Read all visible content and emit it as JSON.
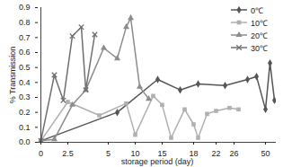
{
  "chart_data": {
    "type": "line",
    "x_label": "storage period (day)",
    "y_label": "% Transmission",
    "categories": [
      "0",
      null,
      null,
      null,
      null,
      null,
      "2.5",
      null,
      null,
      null,
      null,
      null,
      null,
      null,
      null,
      "5",
      null,
      null,
      null,
      null,
      null,
      "10",
      null,
      null,
      null,
      null,
      null,
      "15",
      null,
      null,
      null,
      null,
      null,
      null,
      "18",
      null,
      null,
      null,
      null,
      "22",
      null,
      null,
      null,
      "26",
      null,
      null,
      null,
      null,
      null,
      null,
      "50",
      null,
      null
    ],
    "ylim": [
      0,
      0.9
    ],
    "yticks": [
      {
        "value": 0,
        "label": "0.0"
      },
      0.1,
      0.2,
      0.3,
      0.4,
      0.5,
      0.6,
      0.7,
      0.8,
      0.9
    ],
    "grid": false,
    "legend": "top-right",
    "series": [
      {
        "name": "0℃",
        "color": "#555555",
        "marker": "diamond",
        "values": [
          0.01,
          null,
          null,
          null,
          null,
          null,
          null,
          null,
          null,
          null,
          null,
          null,
          null,
          null,
          null,
          null,
          null,
          0.2,
          null,
          null,
          null,
          null,
          null,
          null,
          null,
          null,
          0.42,
          null,
          null,
          null,
          null,
          0.35,
          null,
          null,
          null,
          0.39,
          null,
          null,
          null,
          null,
          null,
          0.38,
          null,
          null,
          null,
          null,
          0.42,
          null,
          0.44,
          null,
          0.22,
          0.53,
          0.28
        ]
      },
      {
        "name": "10℃",
        "color": "#b0b0b0",
        "marker": "square",
        "values": [
          0.01,
          null,
          null,
          null,
          null,
          null,
          0.27,
          null,
          null,
          null,
          null,
          null,
          null,
          0.18,
          null,
          null,
          null,
          null,
          null,
          0.26,
          null,
          0.05,
          null,
          null,
          null,
          0.31,
          null,
          0.25,
          null,
          0.03,
          null,
          null,
          0.22,
          null,
          0.12,
          0.03,
          null,
          0.19,
          null,
          0.21,
          null,
          null,
          0.23,
          null,
          0.22,
          null,
          null,
          null,
          null,
          null,
          null,
          null,
          null
        ]
      },
      {
        "name": "20℃",
        "color": "#8c8c8c",
        "marker": "triangle",
        "values": [
          0.01,
          null,
          null,
          0.02,
          null,
          null,
          null,
          0.25,
          null,
          null,
          0.35,
          null,
          null,
          null,
          0.63,
          null,
          null,
          0.56,
          null,
          0.77,
          0.83,
          null,
          0.37,
          null,
          0.29,
          null,
          null,
          null,
          null,
          null,
          null,
          null,
          null,
          null,
          null,
          null,
          null,
          null,
          null,
          null,
          null,
          null,
          null,
          null,
          null,
          null,
          null,
          null,
          null,
          null,
          null,
          null,
          null
        ]
      },
      {
        "name": "30℃",
        "color": "#707070",
        "marker": "times",
        "values": [
          0.01,
          null,
          null,
          0.45,
          null,
          0.28,
          null,
          0.71,
          null,
          0.77,
          0.35,
          null,
          0.72,
          null,
          null,
          null,
          null,
          null,
          null,
          null,
          null,
          null,
          null,
          null,
          null,
          null,
          null,
          null,
          null,
          null,
          null,
          null,
          null,
          null,
          null,
          null,
          null,
          null,
          null,
          null,
          null,
          null,
          null,
          null,
          null,
          null,
          null,
          null,
          null,
          null,
          null,
          null,
          null
        ]
      }
    ]
  }
}
